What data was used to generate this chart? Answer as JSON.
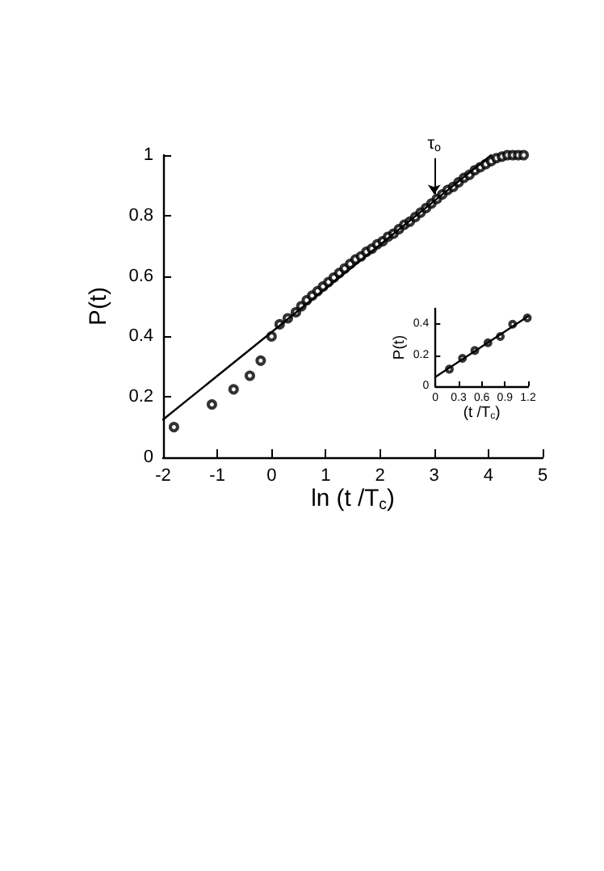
{
  "chart_data": [
    {
      "type": "scatter",
      "xlabel": "ln (t /T$_{c}$)",
      "ylabel": "P(t)",
      "xlim": [
        -2,
        5
      ],
      "ylim": [
        0,
        1
      ],
      "xticks": [
        -2,
        -1,
        0,
        1,
        2,
        3,
        4,
        5
      ],
      "yticks": [
        0,
        0.2,
        0.4,
        0.6,
        0.8,
        1
      ],
      "annotations": [
        {
          "text": "τ$_{o}$",
          "x": 3,
          "y": 0.87
        }
      ],
      "series": [
        {
          "color": "#000000",
          "marker": "circle",
          "x": [
            -1.8,
            -1.1,
            -0.7,
            -0.4,
            -0.2,
            0,
            0.15,
            0.3,
            0.45,
            0.55,
            0.65,
            0.75,
            0.85,
            0.95,
            1.05,
            1.15,
            1.25,
            1.35,
            1.45,
            1.55,
            1.65,
            1.75,
            1.85,
            1.95,
            2.05,
            2.15,
            2.25,
            2.35,
            2.45,
            2.55,
            2.65,
            2.75,
            2.85,
            2.95,
            3.05,
            3.15,
            3.25,
            3.35,
            3.45,
            3.55,
            3.65,
            3.75,
            3.85,
            3.95,
            4.05,
            4.15,
            4.25,
            4.35,
            4.45,
            4.55,
            4.65
          ],
          "values": [
            0.1,
            0.175,
            0.225,
            0.27,
            0.32,
            0.4,
            0.44,
            0.46,
            0.48,
            0.5,
            0.52,
            0.535,
            0.55,
            0.565,
            0.58,
            0.595,
            0.61,
            0.625,
            0.64,
            0.655,
            0.665,
            0.68,
            0.69,
            0.705,
            0.715,
            0.73,
            0.74,
            0.755,
            0.77,
            0.78,
            0.795,
            0.81,
            0.825,
            0.84,
            0.855,
            0.87,
            0.885,
            0.895,
            0.91,
            0.925,
            0.935,
            0.95,
            0.96,
            0.97,
            0.98,
            0.99,
            0.995,
            1,
            1,
            1,
            1
          ]
        },
        {
          "type": "line",
          "color": "#000000",
          "marker": "none",
          "x": [
            -2,
            4.05
          ],
          "values": [
            0.125,
            1
          ]
        }
      ]
    },
    {
      "type": "scatter",
      "xlabel": "(t /T$_{c}$)",
      "ylabel": "P(t)",
      "xlim": [
        0,
        1.2
      ],
      "ylim": [
        0,
        0.5
      ],
      "xticks": [
        0,
        0.3,
        0.6,
        0.9,
        1.2
      ],
      "yticks": [
        0,
        0.2,
        0.4
      ],
      "series": [
        {
          "color": "#000000",
          "marker": "circle",
          "x": [
            0.18,
            0.35,
            0.51,
            0.68,
            0.84,
            1.0,
            1.19
          ],
          "values": [
            0.11,
            0.18,
            0.23,
            0.28,
            0.32,
            0.4,
            0.44
          ]
        },
        {
          "type": "line",
          "color": "#000000",
          "marker": "none",
          "x": [
            0,
            1.2
          ],
          "values": [
            0.06,
            0.45
          ]
        }
      ]
    }
  ]
}
